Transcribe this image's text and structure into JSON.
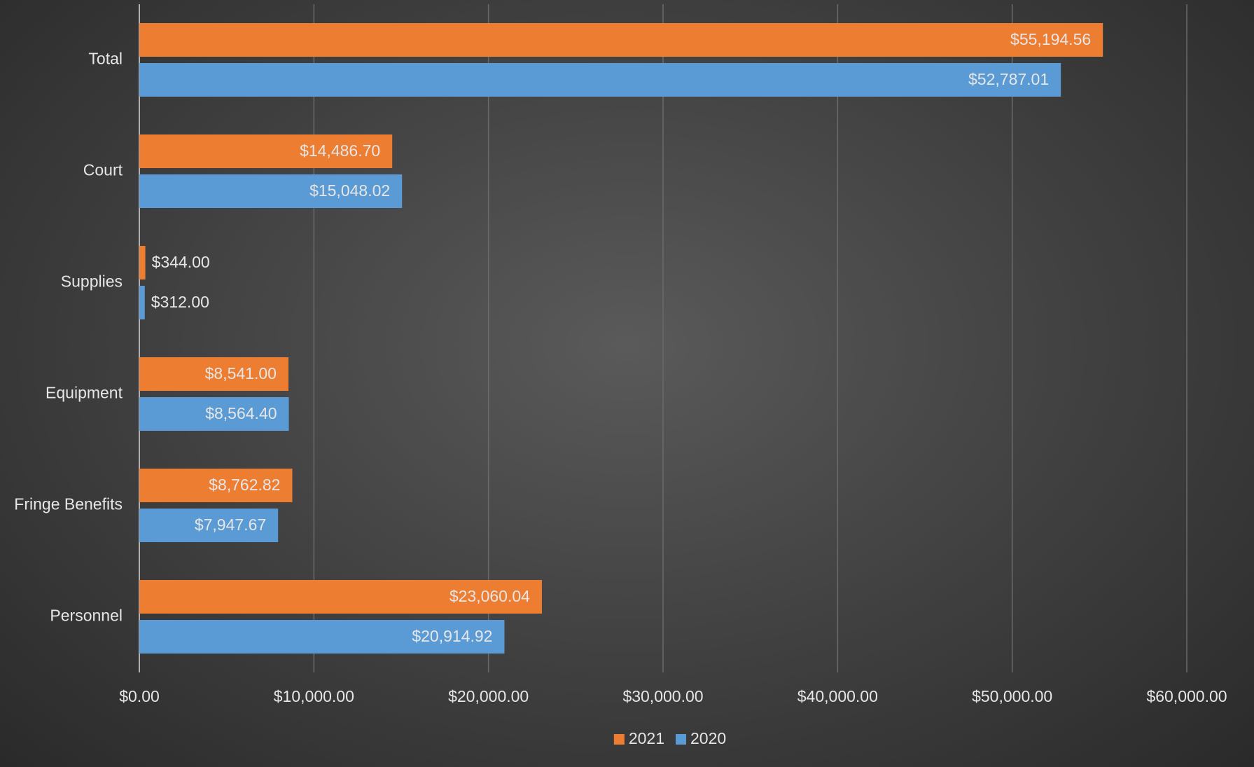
{
  "chart_data": {
    "type": "bar",
    "orientation": "horizontal",
    "categories": [
      "Total",
      "Court",
      "Supplies",
      "Equipment",
      "Fringe Benefits",
      "Personnel"
    ],
    "series": [
      {
        "name": "2021",
        "color": "#ed7d31",
        "values": [
          55194.56,
          14486.7,
          344.0,
          8541.0,
          8762.82,
          23060.04
        ],
        "value_labels": [
          "$55,194.56",
          "$14,486.70",
          "$344.00",
          "$8,541.00",
          "$8,762.82",
          "$23,060.04"
        ]
      },
      {
        "name": "2020",
        "color": "#5b9bd5",
        "values": [
          52787.01,
          15048.02,
          312.0,
          8564.4,
          7947.67,
          20914.92
        ],
        "value_labels": [
          "$52,787.01",
          "$15,048.02",
          "$312.00",
          "$8,564.40",
          "$7,947.67",
          "$20,914.92"
        ]
      }
    ],
    "xlim": [
      0,
      60000
    ],
    "xticks": [
      {
        "value": 0,
        "label": "$0.00"
      },
      {
        "value": 10000,
        "label": "$10,000.00"
      },
      {
        "value": 20000,
        "label": "$20,000.00"
      },
      {
        "value": 30000,
        "label": "$30,000.00"
      },
      {
        "value": 40000,
        "label": "$40,000.00"
      },
      {
        "value": 50000,
        "label": "$50,000.00"
      },
      {
        "value": 60000,
        "label": "$60,000.00"
      }
    ],
    "grid": true,
    "legend": "bottom"
  }
}
